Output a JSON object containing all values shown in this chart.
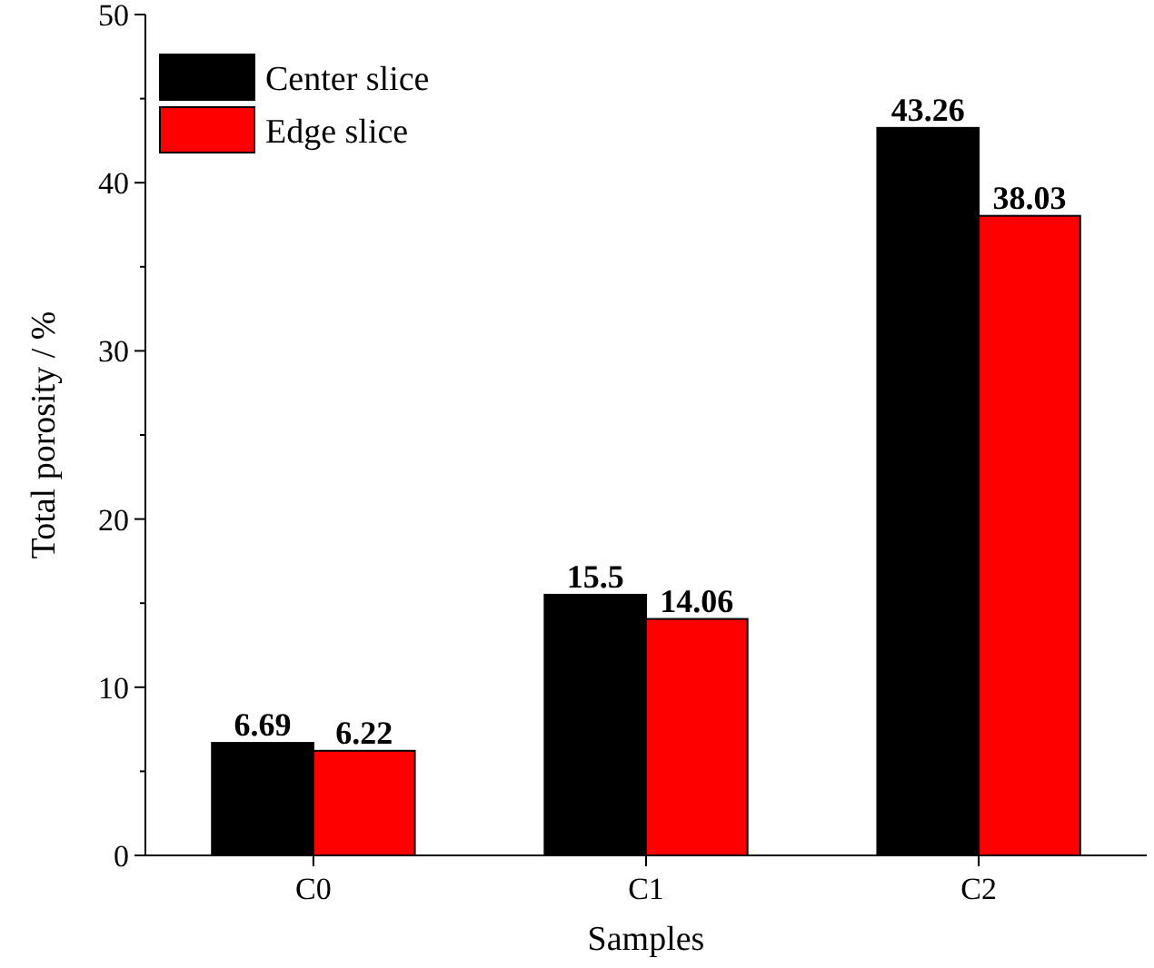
{
  "chart_data": {
    "type": "bar",
    "xlabel": "Samples",
    "ylabel": "Total porosity / %",
    "categories": [
      "C0",
      "C1",
      "C2"
    ],
    "series": [
      {
        "name": "Center slice",
        "color": "#000000",
        "values": [
          6.69,
          15.5,
          43.26
        ]
      },
      {
        "name": "Edge slice",
        "color": "#ff0000",
        "values": [
          6.22,
          14.06,
          38.03
        ]
      }
    ],
    "ylim": [
      0,
      50
    ],
    "yticks": [
      0,
      10,
      20,
      30,
      40,
      50
    ],
    "data_labels": true,
    "legend": "top left",
    "grid": false
  }
}
